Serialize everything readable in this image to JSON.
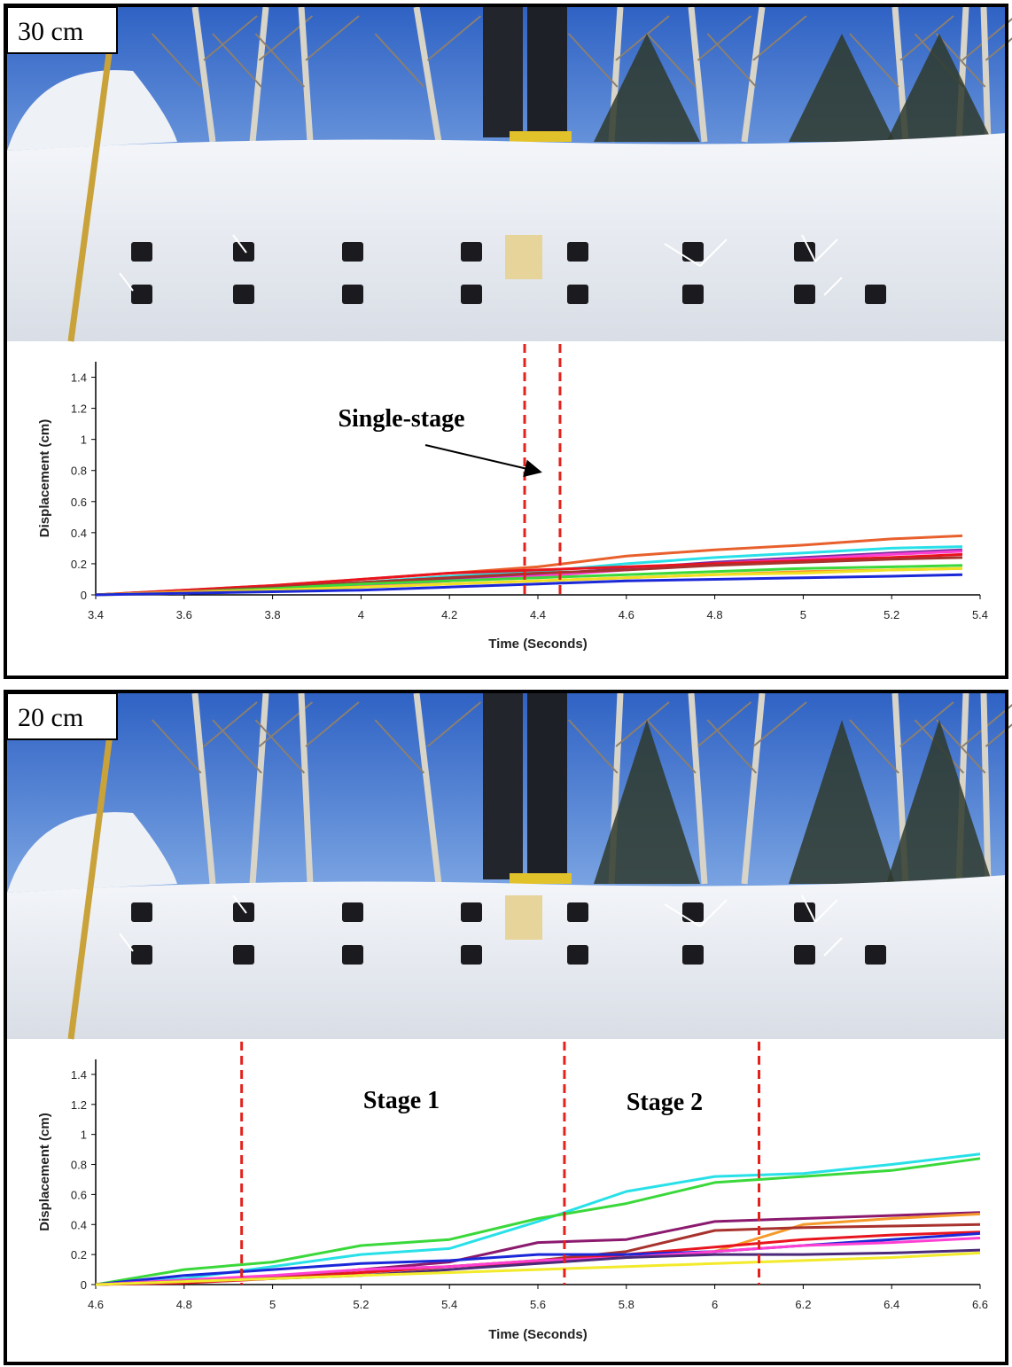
{
  "chart_data": [
    {
      "type": "line",
      "label": "30 cm",
      "annotations": [
        "Single-stage"
      ],
      "xlabel": "Time (Seconds)",
      "ylabel": "Displacement (cm)",
      "xlim": [
        3.4,
        5.4
      ],
      "xticks": [
        3.4,
        3.6,
        3.8,
        4,
        4.2,
        4.4,
        4.6,
        4.8,
        5,
        5.2,
        5.4
      ],
      "ylim": [
        0,
        1.5
      ],
      "yticks": [
        0,
        0.2,
        0.4,
        0.6,
        0.8,
        1,
        1.2,
        1.4
      ],
      "vlines": [
        4.37,
        4.45
      ],
      "vline_color": "#e3221c",
      "x": [
        3.4,
        3.6,
        3.8,
        4.0,
        4.2,
        4.4,
        4.6,
        4.8,
        5.0,
        5.2,
        5.36
      ],
      "series": [
        {
          "color": "#e8602c",
          "values": [
            0,
            0.03,
            0.06,
            0.1,
            0.14,
            0.18,
            0.25,
            0.29,
            0.32,
            0.36,
            0.38
          ]
        },
        {
          "color": "#28e0e8",
          "values": [
            0,
            0.02,
            0.05,
            0.08,
            0.12,
            0.15,
            0.2,
            0.24,
            0.27,
            0.3,
            0.31
          ]
        },
        {
          "color": "#7b2fa0",
          "values": [
            0,
            0.02,
            0.04,
            0.07,
            0.1,
            0.13,
            0.17,
            0.21,
            0.24,
            0.27,
            0.29
          ]
        },
        {
          "color": "#ff3fd2",
          "values": [
            0,
            0.02,
            0.04,
            0.06,
            0.09,
            0.12,
            0.16,
            0.2,
            0.23,
            0.26,
            0.28
          ]
        },
        {
          "color": "#e8141e",
          "values": [
            0,
            0.03,
            0.06,
            0.1,
            0.14,
            0.16,
            0.18,
            0.2,
            0.22,
            0.24,
            0.26
          ]
        },
        {
          "color": "#a8322d",
          "values": [
            0,
            0.02,
            0.05,
            0.08,
            0.11,
            0.14,
            0.16,
            0.19,
            0.21,
            0.23,
            0.24
          ]
        },
        {
          "color": "#3ad83a",
          "values": [
            0,
            0.02,
            0.04,
            0.07,
            0.09,
            0.11,
            0.13,
            0.15,
            0.17,
            0.18,
            0.19
          ]
        },
        {
          "color": "#f59a2a",
          "values": [
            0,
            0.02,
            0.03,
            0.05,
            0.07,
            0.09,
            0.11,
            0.13,
            0.15,
            0.16,
            0.17
          ]
        },
        {
          "color": "#f0e020",
          "values": [
            0,
            0.01,
            0.03,
            0.05,
            0.07,
            0.09,
            0.11,
            0.13,
            0.14,
            0.16,
            0.17
          ]
        },
        {
          "color": "#1a28d8",
          "values": [
            0,
            0.01,
            0.02,
            0.03,
            0.05,
            0.07,
            0.09,
            0.1,
            0.11,
            0.12,
            0.13
          ]
        }
      ]
    },
    {
      "type": "line",
      "label": "20 cm",
      "annotations": [
        "Stage 1",
        "Stage 2"
      ],
      "xlabel": "Time (Seconds)",
      "ylabel": "Displacement (cm)",
      "xlim": [
        4.6,
        6.6
      ],
      "xticks": [
        4.6,
        4.8,
        5,
        5.2,
        5.4,
        5.6,
        5.8,
        6,
        6.2,
        6.4,
        6.6
      ],
      "ylim": [
        0,
        1.5
      ],
      "yticks": [
        0,
        0.2,
        0.4,
        0.6,
        0.8,
        1,
        1.2,
        1.4
      ],
      "vlines": [
        4.93,
        5.66,
        6.1
      ],
      "vline_color": "#e3221c",
      "x": [
        4.6,
        4.8,
        5.0,
        5.2,
        5.4,
        5.6,
        5.8,
        6.0,
        6.2,
        6.4,
        6.6
      ],
      "series": [
        {
          "color": "#28e0e8",
          "values": [
            0,
            0.04,
            0.12,
            0.2,
            0.24,
            0.42,
            0.62,
            0.72,
            0.74,
            0.8,
            0.87
          ]
        },
        {
          "color": "#3ad83a",
          "values": [
            0,
            0.1,
            0.15,
            0.26,
            0.3,
            0.44,
            0.54,
            0.68,
            0.72,
            0.76,
            0.84
          ]
        },
        {
          "color": "#8b1a6e",
          "values": [
            0,
            0.02,
            0.05,
            0.1,
            0.15,
            0.28,
            0.3,
            0.42,
            0.44,
            0.46,
            0.48
          ]
        },
        {
          "color": "#f59a2a",
          "values": [
            0,
            0.02,
            0.04,
            0.08,
            0.12,
            0.16,
            0.18,
            0.22,
            0.4,
            0.44,
            0.47
          ]
        },
        {
          "color": "#a8322d",
          "values": [
            0,
            0.02,
            0.05,
            0.1,
            0.12,
            0.16,
            0.22,
            0.36,
            0.38,
            0.39,
            0.4
          ]
        },
        {
          "color": "#e8141e",
          "values": [
            0,
            0.01,
            0.04,
            0.08,
            0.12,
            0.15,
            0.2,
            0.25,
            0.3,
            0.33,
            0.35
          ]
        },
        {
          "color": "#1a28d8",
          "values": [
            0,
            0.06,
            0.1,
            0.14,
            0.16,
            0.2,
            0.2,
            0.22,
            0.26,
            0.3,
            0.34
          ]
        },
        {
          "color": "#ff3fd2",
          "values": [
            0,
            0.03,
            0.06,
            0.1,
            0.12,
            0.16,
            0.18,
            0.22,
            0.26,
            0.28,
            0.31
          ]
        },
        {
          "color": "#4b2a7a",
          "values": [
            0,
            0.02,
            0.04,
            0.06,
            0.1,
            0.14,
            0.18,
            0.2,
            0.2,
            0.21,
            0.23
          ]
        },
        {
          "color": "#f2ea2a",
          "values": [
            0,
            0.02,
            0.04,
            0.06,
            0.08,
            0.1,
            0.12,
            0.14,
            0.16,
            0.18,
            0.21
          ]
        }
      ]
    }
  ]
}
